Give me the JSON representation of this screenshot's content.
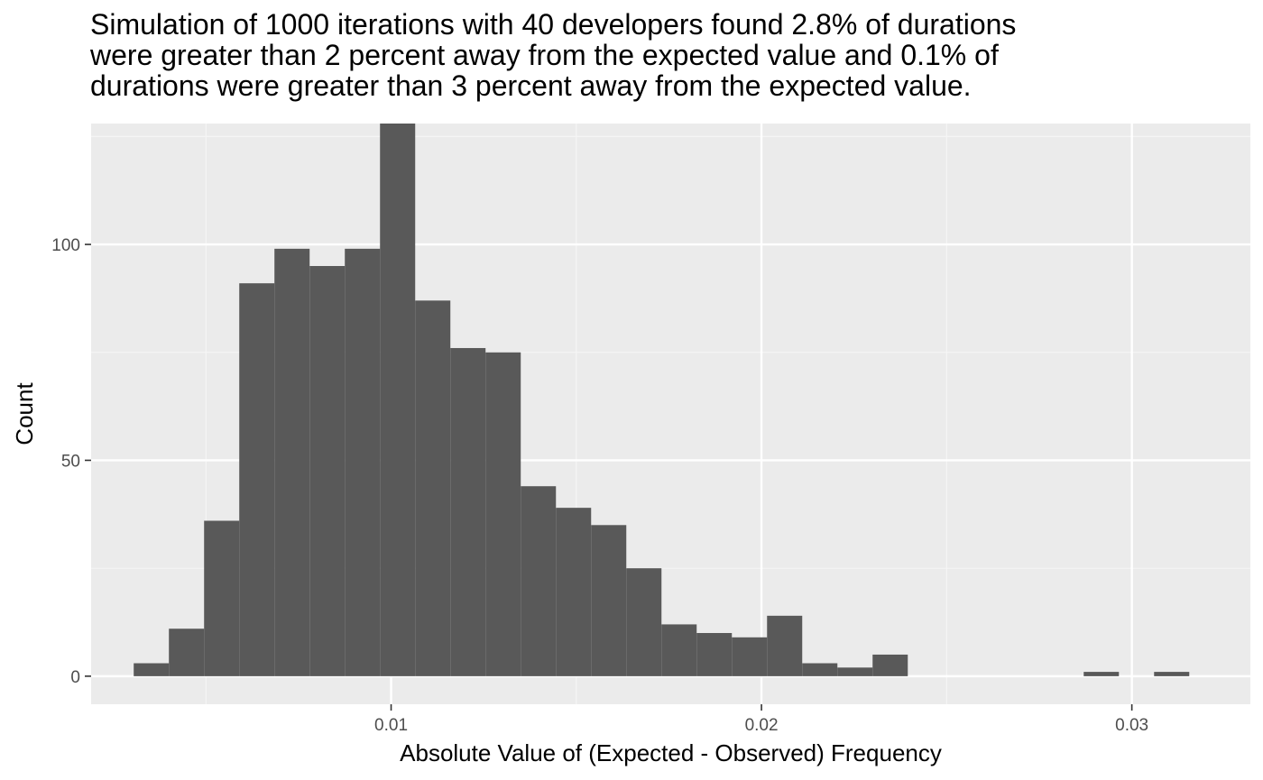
{
  "chart_data": {
    "type": "bar",
    "title_lines": [
      "Simulation of 1000 iterations with 40 developers found 2.8% of durations",
      "were greater than 2 percent away from the expected value and 0.1% of",
      "durations were greater than 3 percent away from the expected value."
    ],
    "xlabel": "Absolute Value of (Expected - Observed) Frequency",
    "ylabel": "Count",
    "xlim": [
      0.0019,
      0.0332
    ],
    "ylim": [
      -6.5,
      128
    ],
    "x_ticks": [
      0.01,
      0.02,
      0.03
    ],
    "x_tick_labels": [
      "0.01",
      "0.02",
      "0.03"
    ],
    "y_ticks": [
      0,
      50,
      100
    ],
    "y_tick_labels": [
      "0",
      "50",
      "100"
    ],
    "bin_width": 0.00095,
    "bins": [
      {
        "x0": 0.00305,
        "x1": 0.004,
        "count": 3
      },
      {
        "x0": 0.004,
        "x1": 0.00495,
        "count": 11
      },
      {
        "x0": 0.00495,
        "x1": 0.0059,
        "count": 36
      },
      {
        "x0": 0.0059,
        "x1": 0.00685,
        "count": 91
      },
      {
        "x0": 0.00685,
        "x1": 0.0078,
        "count": 99
      },
      {
        "x0": 0.0078,
        "x1": 0.00875,
        "count": 95
      },
      {
        "x0": 0.00875,
        "x1": 0.0097,
        "count": 99
      },
      {
        "x0": 0.0097,
        "x1": 0.01065,
        "count": 128
      },
      {
        "x0": 0.01065,
        "x1": 0.0116,
        "count": 87
      },
      {
        "x0": 0.0116,
        "x1": 0.01255,
        "count": 76
      },
      {
        "x0": 0.01255,
        "x1": 0.0135,
        "count": 75
      },
      {
        "x0": 0.0135,
        "x1": 0.01445,
        "count": 44
      },
      {
        "x0": 0.01445,
        "x1": 0.0154,
        "count": 39
      },
      {
        "x0": 0.0154,
        "x1": 0.01635,
        "count": 35
      },
      {
        "x0": 0.01635,
        "x1": 0.0173,
        "count": 25
      },
      {
        "x0": 0.0173,
        "x1": 0.01825,
        "count": 12
      },
      {
        "x0": 0.01825,
        "x1": 0.0192,
        "count": 10
      },
      {
        "x0": 0.0192,
        "x1": 0.02015,
        "count": 9
      },
      {
        "x0": 0.02015,
        "x1": 0.0211,
        "count": 14
      },
      {
        "x0": 0.0211,
        "x1": 0.02205,
        "count": 3
      },
      {
        "x0": 0.02205,
        "x1": 0.023,
        "count": 2
      },
      {
        "x0": 0.023,
        "x1": 0.02395,
        "count": 5
      },
      {
        "x0": 0.02395,
        "x1": 0.0249,
        "count": 0
      },
      {
        "x0": 0.0249,
        "x1": 0.02585,
        "count": 0
      },
      {
        "x0": 0.02585,
        "x1": 0.0268,
        "count": 0
      },
      {
        "x0": 0.0268,
        "x1": 0.02775,
        "count": 0
      },
      {
        "x0": 0.02775,
        "x1": 0.0287,
        "count": 0
      },
      {
        "x0": 0.0287,
        "x1": 0.02965,
        "count": 1
      },
      {
        "x0": 0.02965,
        "x1": 0.0306,
        "count": 0
      },
      {
        "x0": 0.0306,
        "x1": 0.03155,
        "count": 1
      }
    ],
    "grid": true,
    "colors": {
      "panel_background": "#ebebeb",
      "grid_major": "#ffffff",
      "grid_minor": "#f5f5f5",
      "bar_fill": "#595959"
    }
  }
}
